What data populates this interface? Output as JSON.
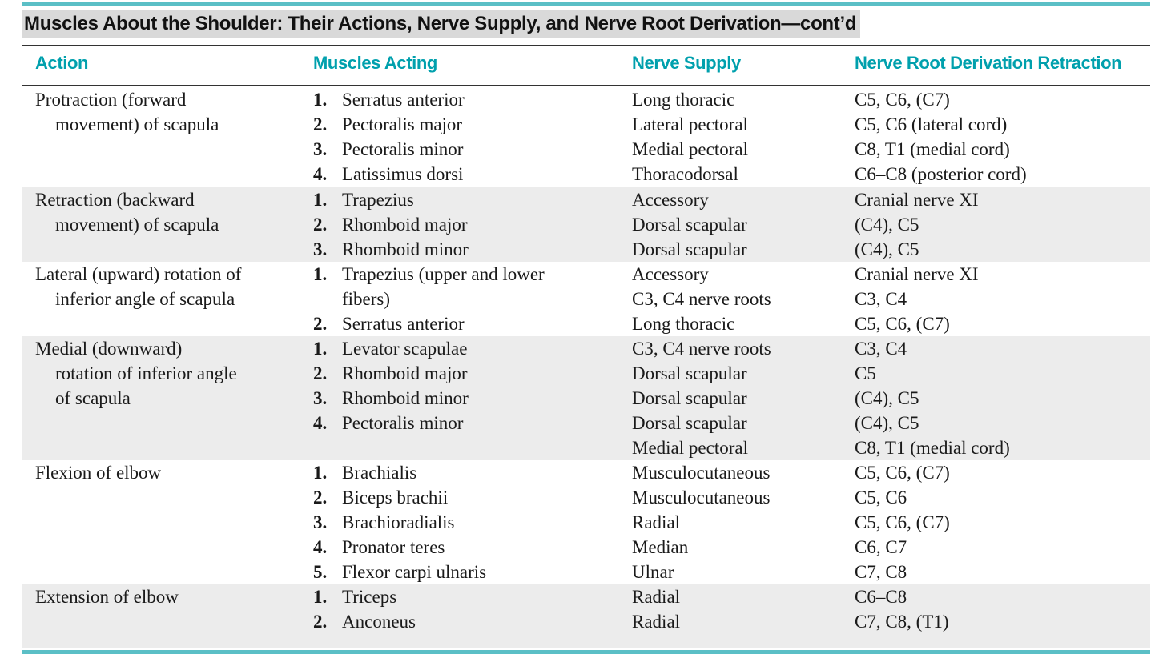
{
  "title": "Muscles About the Shoulder: Their Actions, Nerve Supply, and Nerve Root Derivation—cont’d",
  "colors": {
    "accent": "#5bbfc6",
    "header": "#00a0ad",
    "shade": "#ececec",
    "title_bg": "#d9d9d9"
  },
  "headers": {
    "action": "Action",
    "muscles": "Muscles Acting",
    "nerve": "Nerve Supply",
    "root": "Nerve Root Derivation Retraction"
  },
  "rows": [
    {
      "action": [
        "Protraction (forward",
        "movement) of scapula"
      ],
      "muscles": [
        {
          "n": "1.",
          "t": "Serratus anterior"
        },
        {
          "n": "2.",
          "t": "Pectoralis major"
        },
        {
          "n": "3.",
          "t": "Pectoralis minor"
        },
        {
          "n": "4.",
          "t": "Latissimus dorsi"
        }
      ],
      "nerve": [
        "Long thoracic",
        "Lateral pectoral",
        "Medial pectoral",
        "Thoracodorsal"
      ],
      "root": [
        "C5, C6, (C7)",
        "C5, C6 (lateral cord)",
        "C8, T1 (medial cord)",
        "C6–C8 (posterior cord)"
      ]
    },
    {
      "action": [
        "Retraction (backward",
        "movement) of scapula"
      ],
      "muscles": [
        {
          "n": "1.",
          "t": "Trapezius"
        },
        {
          "n": "2.",
          "t": "Rhomboid major"
        },
        {
          "n": "3.",
          "t": "Rhomboid minor"
        }
      ],
      "nerve": [
        "Accessory",
        "Dorsal scapular",
        "Dorsal scapular"
      ],
      "root": [
        "Cranial nerve XI",
        "(C4), C5",
        "(C4), C5"
      ]
    },
    {
      "action": [
        "Lateral (upward) rotation of",
        "inferior angle of scapula"
      ],
      "muscles": [
        {
          "n": "1.",
          "t": "Trapezius (upper and lower",
          "t2": "fibers)"
        },
        {
          "n": "2.",
          "t": "Serratus anterior"
        }
      ],
      "nerve": [
        "Accessory",
        "C3, C4 nerve roots",
        "Long thoracic"
      ],
      "root": [
        "Cranial nerve XI",
        "C3, C4",
        "C5, C6, (C7)"
      ]
    },
    {
      "action": [
        "Medial (downward)",
        "rotation of inferior angle",
        "of scapula"
      ],
      "muscles": [
        {
          "n": "1.",
          "t": "Levator scapulae"
        },
        {
          "n": "2.",
          "t": "Rhomboid major"
        },
        {
          "n": "3.",
          "t": "Rhomboid minor"
        },
        {
          "n": "4.",
          "t": "Pectoralis minor"
        }
      ],
      "nerve": [
        "C3, C4 nerve roots",
        "Dorsal scapular",
        "Dorsal scapular",
        "Dorsal scapular",
        "Medial pectoral"
      ],
      "root": [
        "C3, C4",
        "C5",
        "(C4), C5",
        "(C4), C5",
        "C8, T1 (medial cord)"
      ]
    },
    {
      "action": [
        "Flexion of elbow"
      ],
      "muscles": [
        {
          "n": "1.",
          "t": "Brachialis"
        },
        {
          "n": "2.",
          "t": "Biceps brachii"
        },
        {
          "n": "3.",
          "t": "Brachioradialis"
        },
        {
          "n": "4.",
          "t": "Pronator teres"
        },
        {
          "n": "5.",
          "t": "Flexor carpi ulnaris"
        }
      ],
      "nerve": [
        "Musculocutaneous",
        "Musculocutaneous",
        "Radial",
        "Median",
        "Ulnar"
      ],
      "root": [
        "C5, C6, (C7)",
        "C5, C6",
        "C5, C6, (C7)",
        "C6, C7",
        "C7, C8"
      ]
    },
    {
      "action": [
        "Extension of elbow"
      ],
      "muscles": [
        {
          "n": "1.",
          "t": "Triceps"
        },
        {
          "n": "2.",
          "t": "Anconeus"
        }
      ],
      "nerve": [
        "Radial",
        "Radial"
      ],
      "root": [
        "C6–C8",
        "C7, C8, (T1)"
      ]
    }
  ]
}
